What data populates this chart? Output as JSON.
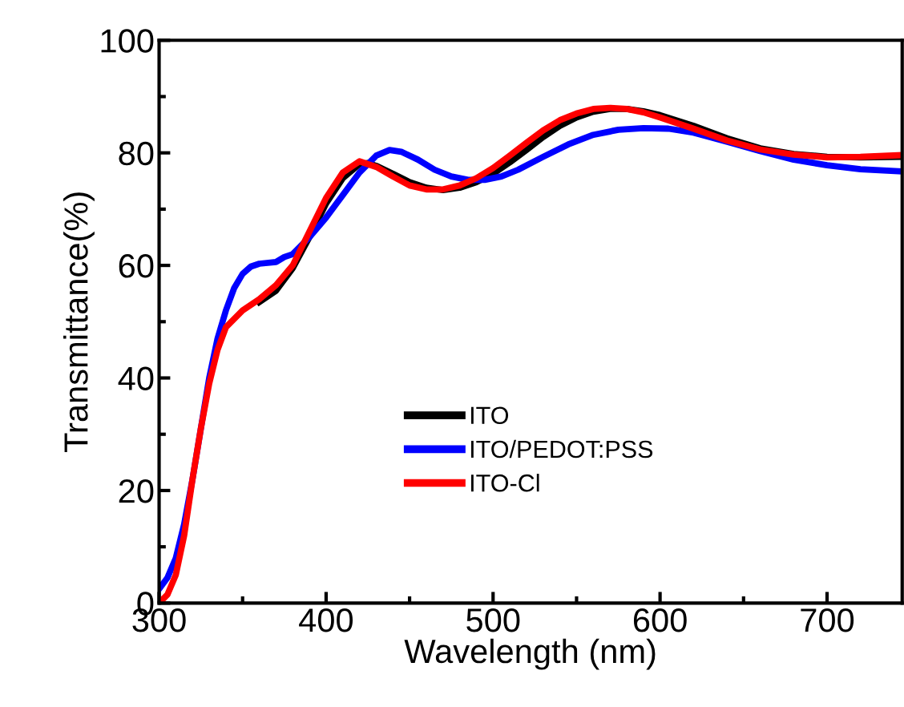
{
  "chart_data": {
    "type": "line",
    "xlabel": "Wavelength (nm)",
    "ylabel": "Transmittance(%)",
    "xlim": [
      300,
      745
    ],
    "ylim": [
      0,
      100
    ],
    "xticks": [
      300,
      {
        "value": 350,
        "label": null
      },
      400,
      {
        "value": 450,
        "label": null
      },
      500,
      {
        "value": 550,
        "label": null
      },
      600,
      {
        "value": 650,
        "label": null
      },
      700
    ],
    "yticks": [
      0,
      {
        "value": 10,
        "label": null
      },
      20,
      {
        "value": 30,
        "label": null
      },
      40,
      {
        "value": 50,
        "label": null
      },
      60,
      {
        "value": 70,
        "label": null
      },
      80,
      {
        "value": 90,
        "label": null
      },
      100
    ],
    "grid": false,
    "legend": "bottom",
    "marker": "none",
    "line_style": "solid",
    "series": [
      {
        "name": "ITO",
        "color": "#000000",
        "x": [
          360,
          370,
          380,
          390,
          400,
          410,
          420,
          425,
          430,
          440,
          450,
          460,
          470,
          480,
          490,
          500,
          510,
          520,
          530,
          540,
          550,
          560,
          570,
          580,
          590,
          600,
          620,
          640,
          660,
          680,
          700,
          720,
          745
        ],
        "values": [
          53.5,
          55.5,
          59.5,
          65,
          71,
          75.5,
          78,
          78.2,
          77.7,
          76.3,
          74.8,
          73.8,
          73.4,
          73.8,
          74.8,
          76.3,
          78.3,
          80.5,
          82.8,
          84.8,
          86.3,
          87.3,
          87.8,
          87.8,
          87.4,
          86.7,
          84.8,
          82.6,
          80.8,
          79.8,
          79.3,
          79.2,
          79.3
        ]
      },
      {
        "name": "ITO/PEDOT:PSS",
        "color": "#0000ff",
        "x": [
          300,
          305,
          310,
          315,
          320,
          325,
          330,
          335,
          340,
          345,
          350,
          355,
          360,
          370,
          375,
          380,
          390,
          400,
          410,
          420,
          430,
          438,
          445,
          455,
          465,
          475,
          485,
          495,
          505,
          515,
          530,
          545,
          560,
          575,
          590,
          605,
          620,
          640,
          660,
          680,
          700,
          720,
          745
        ],
        "values": [
          2.5,
          4.5,
          8,
          14,
          22,
          31,
          40,
          47,
          52,
          56,
          58.5,
          59.8,
          60.3,
          60.6,
          61.5,
          62,
          65,
          68.5,
          72.5,
          76.5,
          79.5,
          80.5,
          80.2,
          78.8,
          77,
          75.8,
          75.2,
          75.2,
          75.8,
          77,
          79.3,
          81.5,
          83.2,
          84.1,
          84.4,
          84.3,
          83.6,
          82,
          80.3,
          78.8,
          77.8,
          77.1,
          76.7
        ]
      },
      {
        "name": "ITO-Cl",
        "color": "#ff0000",
        "x": [
          300,
          305,
          310,
          315,
          320,
          325,
          330,
          335,
          340,
          345,
          350,
          360,
          370,
          380,
          390,
          400,
          410,
          420,
          430,
          440,
          450,
          460,
          470,
          480,
          490,
          500,
          510,
          520,
          530,
          540,
          550,
          560,
          570,
          580,
          590,
          600,
          620,
          640,
          660,
          680,
          700,
          720,
          745
        ],
        "values": [
          0,
          1.5,
          5,
          12,
          22,
          31,
          39,
          45,
          49,
          50.5,
          52,
          54,
          56.5,
          60,
          66,
          72,
          76.5,
          78.5,
          77.5,
          75.8,
          74.2,
          73.5,
          73.5,
          74.2,
          75.5,
          77.3,
          79.5,
          81.8,
          84,
          85.8,
          87,
          87.8,
          88,
          87.8,
          87.2,
          86.3,
          84.3,
          82.2,
          80.6,
          79.7,
          79.2,
          79.3,
          79.6
        ]
      }
    ]
  }
}
